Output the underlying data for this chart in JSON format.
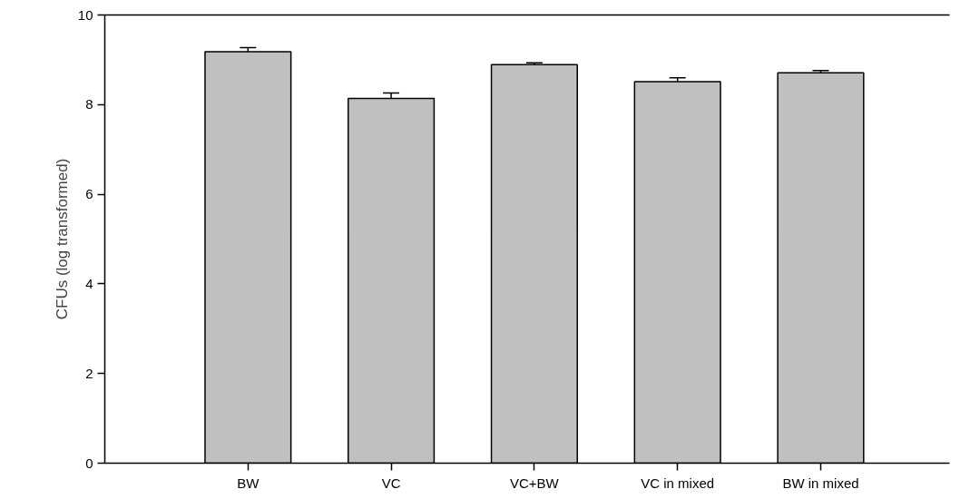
{
  "chart_data": {
    "type": "bar",
    "ylabel": "CFUs (log transformed)",
    "categories": [
      "BW",
      "VC",
      "VC+BW",
      "VC in mixed",
      "BW in mixed"
    ],
    "values": [
      9.18,
      8.14,
      8.89,
      8.51,
      8.71
    ],
    "errors": [
      0.09,
      0.12,
      0.04,
      0.09,
      0.05
    ],
    "color": "#c0c0c0",
    "ylim": [
      0,
      10
    ],
    "yticks": [
      0,
      2,
      4,
      6,
      8,
      10
    ],
    "grid": false
  }
}
